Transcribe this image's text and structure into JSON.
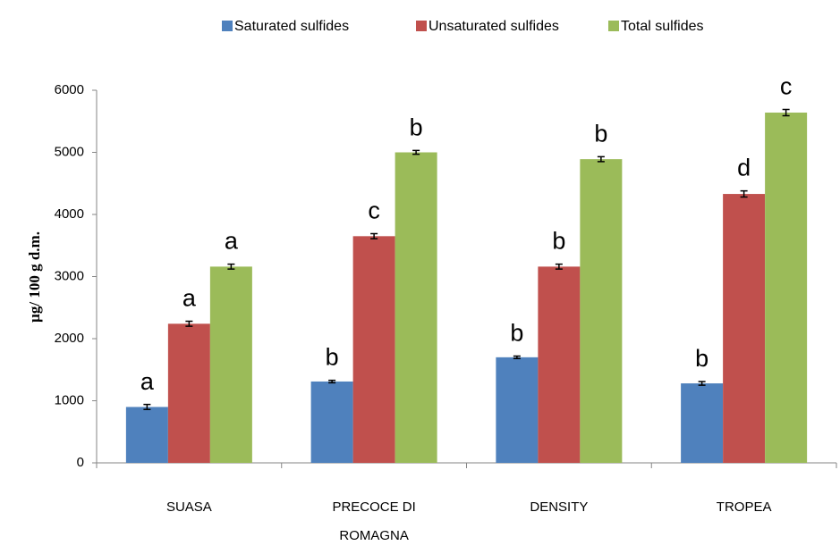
{
  "chart_data": {
    "type": "bar",
    "y_label": "µg/ 100 g d.m.",
    "categories": [
      "SUASA",
      "PRECOCE DI ROMAGNA",
      "DENSITY",
      "TROPEA"
    ],
    "series": [
      {
        "name": "Saturated sulfides",
        "color": "#4f81bd",
        "values": [
          900,
          1310,
          1700,
          1280
        ],
        "errors": [
          40,
          20,
          20,
          30
        ],
        "letters": [
          "a",
          "b",
          "b",
          "b"
        ]
      },
      {
        "name": "Unsaturated sulfides",
        "color": "#c0504d",
        "values": [
          2240,
          3650,
          3160,
          4330
        ],
        "errors": [
          40,
          40,
          40,
          50
        ],
        "letters": [
          "a",
          "c",
          "b",
          "d"
        ]
      },
      {
        "name": "Total sulfides",
        "color": "#9bbb59",
        "values": [
          3160,
          5000,
          4890,
          5640
        ],
        "errors": [
          40,
          30,
          40,
          50
        ],
        "letters": [
          "a",
          "b",
          "b",
          "c"
        ]
      }
    ],
    "ylim": [
      0,
      6000
    ],
    "yticks": [
      0,
      1000,
      2000,
      3000,
      4000,
      5000,
      6000
    ],
    "legend": "top"
  }
}
